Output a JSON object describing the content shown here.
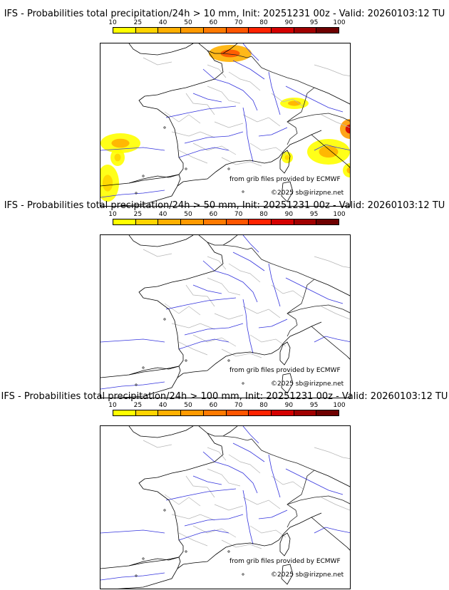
{
  "colorbar": {
    "ticks": [
      "10",
      "25",
      "40",
      "50",
      "60",
      "70",
      "80",
      "90",
      "95",
      "100"
    ],
    "colors": [
      "#ffff00",
      "#ffd400",
      "#ffb000",
      "#ff9a00",
      "#ff7a00",
      "#ff5500",
      "#ff2200",
      "#d40000",
      "#a00000",
      "#6e0000"
    ]
  },
  "credits": {
    "source": "from grib files provided by ECMWF",
    "copyright": "©2025 sb@irizpne.net"
  },
  "panels": [
    {
      "title": "IFS - Probabilities total precipitation/24h > 10 mm, Init: 20251231 00z - Valid: 20260103:12 TU",
      "threshold_mm": 10,
      "has_precip": true
    },
    {
      "title": "IFS - Probabilities total precipitation/24h > 50 mm, Init: 20251231 00z - Valid: 20260103:12 TU",
      "threshold_mm": 50,
      "has_precip": false
    },
    {
      "title": "IFS - Probabilities total precipitation/24h > 100 mm, Init: 20251231 00z - Valid: 20260103:12 TU",
      "threshold_mm": 100,
      "has_precip": false
    }
  ]
}
